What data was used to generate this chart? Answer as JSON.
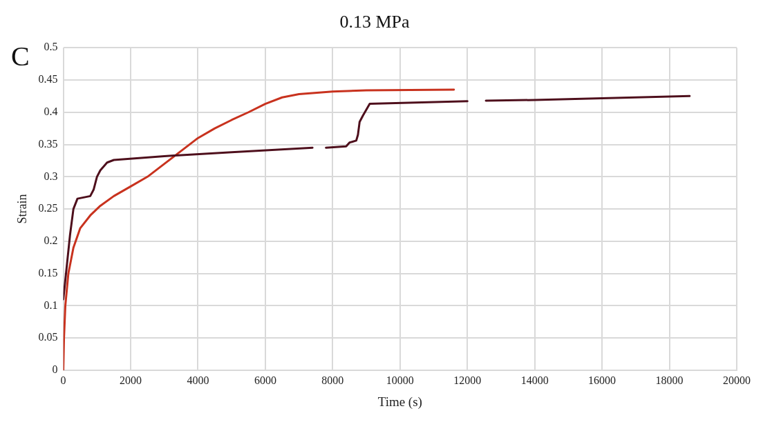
{
  "chart_data": {
    "type": "line",
    "title": "0.13 MPa",
    "xlabel": "Time (s)",
    "ylabel": "Strain",
    "annotations": [
      "C"
    ],
    "xlim": [
      0,
      20000
    ],
    "xticks": [
      0,
      2000,
      4000,
      6000,
      8000,
      10000,
      12000,
      14000,
      16000,
      18000,
      20000
    ],
    "ylim": [
      0,
      0.5
    ],
    "yticks": [
      0,
      0.05,
      0.1,
      0.15,
      0.2,
      0.25,
      0.3,
      0.35,
      0.4,
      0.45,
      0.5
    ],
    "grid": true,
    "legend": false,
    "marker": "none",
    "line_style": "solid",
    "series": [
      {
        "color": "#4e0f1c",
        "x": [
          0,
          100,
          200,
          300,
          420,
          800,
          900,
          1000,
          1100,
          1300,
          1500,
          3000,
          5000,
          7400,
          7600,
          7800,
          8400,
          8500,
          8700,
          8750,
          8800,
          8900,
          9100,
          12000,
          12400,
          12550,
          14000,
          18600
        ],
        "values": [
          0.11,
          0.16,
          0.21,
          0.25,
          0.266,
          0.27,
          0.28,
          0.3,
          0.31,
          0.322,
          0.326,
          0.332,
          0.338,
          0.345,
          null,
          0.345,
          0.347,
          0.353,
          0.356,
          0.365,
          0.385,
          0.395,
          0.413,
          0.417,
          null,
          0.418,
          0.419,
          0.425
        ]
      },
      {
        "color": "#c8321e",
        "x": [
          0,
          20,
          60,
          150,
          300,
          500,
          800,
          1100,
          1500,
          2000,
          2500,
          3000,
          3500,
          4000,
          4500,
          5000,
          5500,
          6000,
          6500,
          7000,
          8000,
          9000,
          11600
        ],
        "values": [
          0,
          0.05,
          0.1,
          0.15,
          0.19,
          0.22,
          0.24,
          0.255,
          0.27,
          0.285,
          0.3,
          0.32,
          0.34,
          0.36,
          0.375,
          0.388,
          0.4,
          0.413,
          0.423,
          0.428,
          0.432,
          0.434,
          0.435
        ]
      }
    ]
  }
}
